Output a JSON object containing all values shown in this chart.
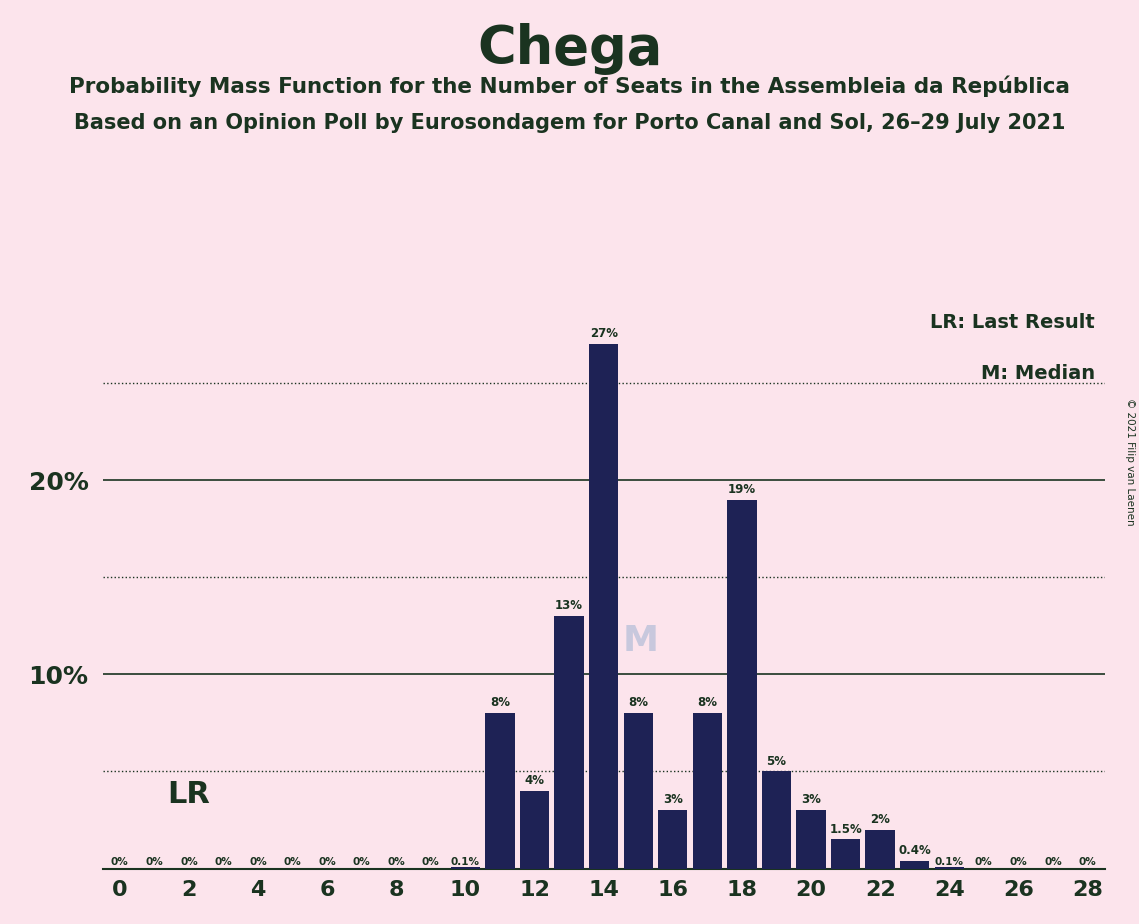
{
  "title": "Chega",
  "subtitle1": "Probability Mass Function for the Number of Seats in the Assembleia da República",
  "subtitle2": "Based on an Opinion Poll by Eurosondagem for Porto Canal and Sol, 26–29 July 2021",
  "copyright": "© 2021 Filip van Laenen",
  "seats": [
    0,
    1,
    2,
    3,
    4,
    5,
    6,
    7,
    8,
    9,
    10,
    11,
    12,
    13,
    14,
    15,
    16,
    17,
    18,
    19,
    20,
    21,
    22,
    23,
    24,
    25,
    26,
    27,
    28
  ],
  "probabilities": [
    0.0,
    0.0,
    0.0,
    0.0,
    0.0,
    0.0,
    0.0,
    0.0,
    0.0,
    0.0,
    0.001,
    0.08,
    0.04,
    0.13,
    0.27,
    0.08,
    0.03,
    0.08,
    0.19,
    0.05,
    0.03,
    0.015,
    0.02,
    0.004,
    0.001,
    0.0,
    0.0,
    0.0,
    0.0
  ],
  "bar_color": "#1e2255",
  "background_color": "#fce4ec",
  "text_color": "#1a3320",
  "axis_color": "#1a3320",
  "grid_color": "#1a3320",
  "last_result_seat": 1,
  "median_seat": 14,
  "xlim": [
    -0.5,
    28.5
  ],
  "ylim": [
    0,
    0.295
  ],
  "solid_yticks": [
    0.0,
    0.1,
    0.2
  ],
  "dotted_yticks": [
    0.05,
    0.15,
    0.25
  ],
  "xtick_positions": [
    0,
    2,
    4,
    6,
    8,
    10,
    12,
    14,
    16,
    18,
    20,
    22,
    24,
    26,
    28
  ],
  "bar_labels": {
    "0": "0%",
    "1": "0%",
    "2": "0%",
    "3": "0%",
    "4": "0%",
    "5": "0%",
    "6": "0%",
    "7": "0%",
    "8": "0%",
    "9": "0%",
    "10": "0.1%",
    "11": "8%",
    "12": "4%",
    "13": "13%",
    "14": "27%",
    "15": "8%",
    "16": "3%",
    "17": "8%",
    "18": "19%",
    "19": "5%",
    "20": "3%",
    "21": "1.5%",
    "22": "2%",
    "23": "0.4%",
    "24": "0.1%",
    "25": "0%",
    "26": "0%",
    "27": "0%",
    "28": "0%"
  },
  "lr_label_text": "LR",
  "m_label_text": "M",
  "lr_result_label": "LR: Last Result",
  "m_result_label": "M: Median",
  "figsize": [
    11.39,
    9.24
  ],
  "dpi": 100
}
